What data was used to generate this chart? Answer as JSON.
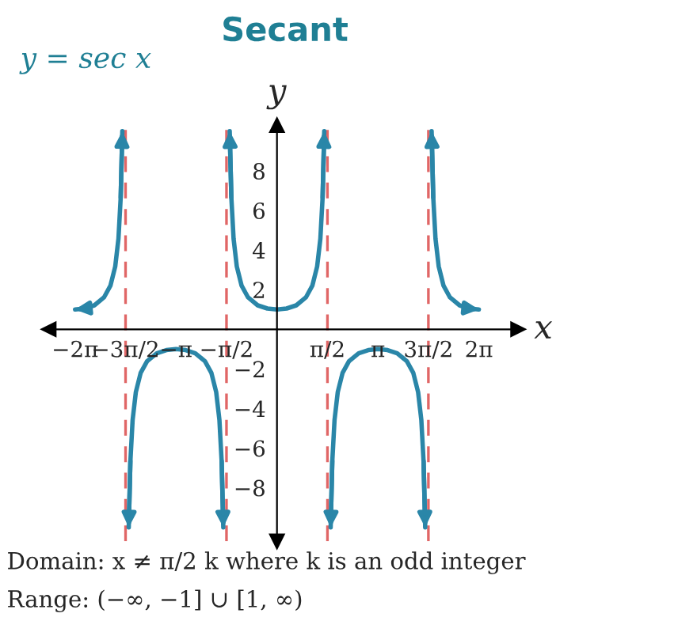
{
  "chart_data": {
    "type": "line",
    "title": "Secant",
    "xlabel": "x",
    "ylabel": "y",
    "annotations": [
      "y = sec x",
      "Domain: x ≠ π/2 k where k is an odd integer",
      "Range: (−∞, −1] ∪ [1, ∞)"
    ],
    "series": [
      {
        "color": "#2a86a8",
        "x": [
          -6.2832,
          -5.9832,
          -5.6832,
          -5.3832,
          -5.1832,
          -5.0332,
          -4.9332,
          -4.8632,
          -4.8122
        ],
        "values": [
          1,
          1.05,
          1.21,
          1.61,
          2.2,
          3.17,
          4.57,
          6.66,
          10
        ]
      },
      {
        "color": "#2a86a8",
        "x": [
          -4.6126,
          -4.5616,
          -4.4916,
          -4.3916,
          -4.2416,
          -4.0416,
          -3.7416,
          -3.4416,
          -3.1416,
          -2.8416,
          -2.5416,
          -2.2416,
          -2.0416,
          -1.8916,
          -1.7916,
          -1.7216,
          -1.6706
        ],
        "values": [
          -10,
          -6.66,
          -4.57,
          -3.17,
          -2.2,
          -1.61,
          -1.21,
          -1.05,
          -1,
          -1.05,
          -1.21,
          -1.61,
          -2.2,
          -3.17,
          -4.57,
          -6.66,
          -10
        ]
      },
      {
        "color": "#2a86a8",
        "x": [
          -1.471,
          -1.42,
          -1.35,
          -1.25,
          -1.1,
          -0.9,
          -0.6,
          -0.3,
          0,
          0.3,
          0.6,
          0.9,
          1.1,
          1.25,
          1.35,
          1.42,
          1.471
        ],
        "values": [
          10,
          6.66,
          4.57,
          3.17,
          2.2,
          1.61,
          1.21,
          1.05,
          1,
          1.05,
          1.21,
          1.61,
          2.2,
          3.17,
          4.57,
          6.66,
          10
        ]
      },
      {
        "color": "#2a86a8",
        "x": [
          1.6706,
          1.7216,
          1.7916,
          1.8916,
          2.0416,
          2.2416,
          2.5416,
          2.8416,
          3.1416,
          3.4416,
          3.7416,
          4.0416,
          4.2416,
          4.3916,
          4.4916,
          4.5616,
          4.6126
        ],
        "values": [
          -10,
          -6.66,
          -4.57,
          -3.17,
          -2.2,
          -1.61,
          -1.21,
          -1.05,
          -1,
          -1.05,
          -1.21,
          -1.61,
          -2.2,
          -3.17,
          -4.57,
          -6.66,
          -10
        ]
      },
      {
        "color": "#2a86a8",
        "x": [
          4.8122,
          4.8632,
          4.9332,
          5.0332,
          5.1832,
          5.3832,
          5.6832,
          5.9832,
          6.2832
        ],
        "values": [
          10,
          6.66,
          4.57,
          3.17,
          2.2,
          1.61,
          1.21,
          1.05,
          1
        ]
      }
    ],
    "ref_lines": [
      {
        "axis": "x",
        "value": -4.712,
        "color": "#e06666",
        "line_style": "dashed"
      },
      {
        "axis": "x",
        "value": -1.571,
        "color": "#e06666",
        "line_style": "dashed"
      },
      {
        "axis": "x",
        "value": 1.571,
        "color": "#e06666",
        "line_style": "dashed"
      },
      {
        "axis": "x",
        "value": 4.712,
        "color": "#e06666",
        "line_style": "dashed"
      }
    ],
    "xlim": [
      -7.1,
      7.5
    ],
    "ylim": [
      -10.7,
      10.3
    ],
    "xticks": [
      {
        "value": -6.283,
        "label": "−2π"
      },
      {
        "value": -4.712,
        "label": "−3π/2"
      },
      {
        "value": -3.142,
        "label": "−π"
      },
      {
        "value": -1.571,
        "label": "−π/2"
      },
      {
        "value": 1.571,
        "label": "π/2"
      },
      {
        "value": 3.142,
        "label": "π"
      },
      {
        "value": 4.712,
        "label": "3π/2"
      },
      {
        "value": 6.283,
        "label": "2π"
      }
    ],
    "yticks": [
      {
        "value": -8,
        "label": "−8"
      },
      {
        "value": -6,
        "label": "−6"
      },
      {
        "value": -4,
        "label": "−4"
      },
      {
        "value": -2,
        "label": "−2"
      },
      2,
      4,
      6,
      8
    ],
    "grid": false,
    "legend": false,
    "marker": "none",
    "line_style": "solid"
  }
}
